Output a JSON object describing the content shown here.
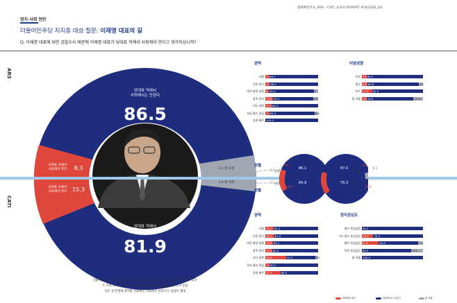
{
  "header": {
    "category": "정치·사회 현안",
    "running_head": "정례여론조사_ARS · CATI_보고서    REPORT #202302_02",
    "title_prefix": "더불어민주당 지지층 대상 질문:",
    "title_main": "이재명 대표의 길",
    "question": "Q.  이재명 대표에 대한 검찰수사 때문에 이재명 대표가 당대표 직에서 사퇴해야 한다고 생각하십니까?"
  },
  "side": {
    "ars": "ARS",
    "cati": "CATI"
  },
  "donut": {
    "ars_main_label": "당대표 직에서\n사퇴해서는 안된다",
    "ars_main_value": "86.5",
    "cati_main_label": "당대표 직에서\n사퇴해서는 안된다",
    "cati_main_value": "81.9",
    "ars_red_label": "당대표 직에서\n사퇴해야 한다",
    "ars_red_value": "8.3",
    "cati_red_label": "당대표 직에서\n사퇴해야 한다",
    "cati_red_value": "15.3",
    "ars_gray": "5.1  잘 모름",
    "cati_gray": "2.8  잘 모름",
    "ars_n": "n= 482",
    "cati_n": "n= 421",
    "footnote": "더불어민주당 지지층 (CATI n=421명 / ARS n=482명)을 대상으로 질문한 결과,\n두 조사 모두 10명 중 8명 이상이 '당대표직을 유지해야 한다'고 응답\n모든 성·연령대·권역별 지표에서 '사퇴해선 안된다'는 응답이 절대"
  },
  "colors": {
    "navy": "#1f2d7f",
    "red": "#e0473c",
    "gray": "#a1a7b2",
    "accent": "#1e3a8a"
  },
  "panels": {
    "region_ars": {
      "title": "권역",
      "rows": [
        {
          "label": "서울",
          "red": "7.0",
          "blue": "89.7",
          "gray": ""
        },
        {
          "label": "인천·경기",
          "red": "7.9",
          "blue": "88.2",
          "gray": ""
        },
        {
          "label": "대전·충청·세종",
          "red": "6.5",
          "blue": "85.4",
          "gray": "8"
        },
        {
          "label": "광주·전라",
          "red": "13.9",
          "blue": "76.3",
          "gray": "9.8"
        },
        {
          "label": "대구·경북",
          "red": "11.3",
          "blue": "84.2",
          "gray": ""
        },
        {
          "label": "부산·울산·경남",
          "red": "7.3",
          "blue": "85.9",
          "gray": "6.8"
        },
        {
          "label": "강원·제주",
          "red": "",
          "blue": "100.0",
          "gray": ""
        }
      ]
    },
    "ideology_ars": {
      "title": "이념성향",
      "rows": [
        {
          "label": "진보",
          "red": "7.3",
          "blue": "89.5",
          "gray": ""
        },
        {
          "label": "중도",
          "red": "8.8",
          "blue": "84.8",
          "gray": "6.4"
        },
        {
          "label": "보수",
          "red": "17.3",
          "blue": "85.9",
          "gray": ""
        },
        {
          "label": "잘 모름",
          "red": "7.8",
          "blue": "76.8",
          "gray": "15.4"
        }
      ]
    },
    "gender": {
      "title_top": "성별",
      "title_bottom": "성별",
      "male_label": "남성",
      "female_label": "여성",
      "ars_male_blue": "86.1",
      "ars_male_red": "9.6",
      "ars_female_blue": "87.0",
      "ars_female_red": "6.8",
      "ars_female_gray": "6.1",
      "cati_male_blue": "84.9",
      "cati_male_red": "14.0",
      "cati_female_blue": "79.3",
      "cati_female_red": "16.4"
    },
    "region_cati": {
      "title": "권역",
      "rows": [
        {
          "label": "서울",
          "red": "15.1",
          "blue": "82.4",
          "gray": ""
        },
        {
          "label": "인천·경기",
          "red": "16.5",
          "blue": "81.5",
          "gray": ""
        },
        {
          "label": "대전·충청·세종",
          "red": "13.9",
          "blue": "83.1",
          "gray": ""
        },
        {
          "label": "광주·전라",
          "red": "11.9",
          "blue": "80.3",
          "gray": ""
        },
        {
          "label": "대구·경북",
          "red": "39.0",
          "blue": "55.5",
          "gray": "5.5"
        },
        {
          "label": "부산·울산·경남",
          "red": "7.6",
          "blue": "90.3",
          "gray": ""
        },
        {
          "label": "강원·제주",
          "red": "27.4",
          "blue": "68.3",
          "gray": ""
        }
      ]
    },
    "politics_cati": {
      "title": "정치관심도",
      "rows": [
        {
          "label": "매우 관심있음",
          "red": "",
          "blue": "94.2",
          "gray": ""
        },
        {
          "label": "어느정도 관심있음",
          "red": "18.3",
          "blue": "79.4",
          "gray": ""
        },
        {
          "label": "별로 관심없음",
          "red": "27.6",
          "blue": "64.9",
          "gray": "7.5"
        },
        {
          "label": "전혀 관심없음",
          "red": "",
          "blue": "80.5",
          "gray": "19.5"
        },
        {
          "label": "잘 모름",
          "red": "",
          "blue": "100.0",
          "gray": ""
        }
      ]
    }
  },
  "legend": {
    "red": "사퇴해야 한다",
    "blue": "사퇴해서는 안된다",
    "gray": "잘 모름"
  }
}
